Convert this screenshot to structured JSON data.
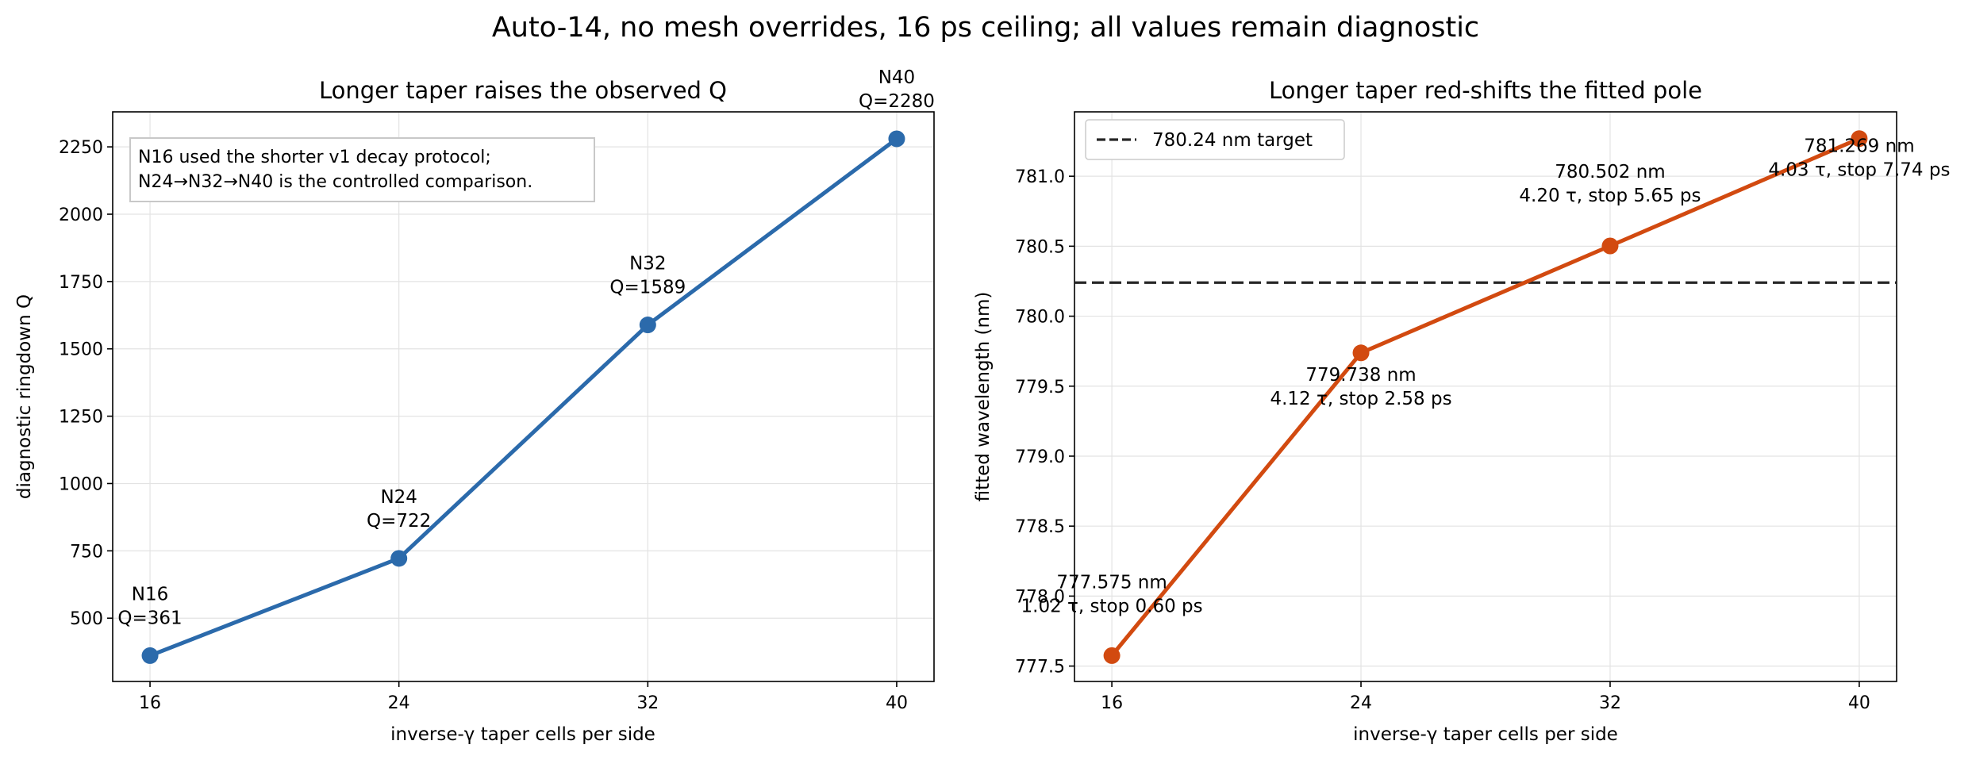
{
  "suptitle": "Auto-14, no mesh overrides, 16 ps ceiling; all values remain diagnostic",
  "chart_data": [
    {
      "type": "line",
      "title": "Longer taper raises the observed Q",
      "xlabel": "inverse-γ taper cells per side",
      "ylabel": "diagnostic ringdown Q",
      "x": [
        16,
        24,
        32,
        40
      ],
      "xticks": [
        "16",
        "24",
        "32",
        "40"
      ],
      "yticks": [
        "500",
        "750",
        "1000",
        "1250",
        "1500",
        "1750",
        "2000",
        "2250"
      ],
      "xlim": [
        14.8,
        41.2
      ],
      "ylim": [
        265,
        2380
      ],
      "grid": true,
      "color": "#2b6aab",
      "series": [
        {
          "values": [
            361,
            722,
            1589,
            2280
          ]
        }
      ],
      "point_labels": [
        [
          "N16",
          "Q=361"
        ],
        [
          "N24",
          "Q=722"
        ],
        [
          "N32",
          "Q=1589"
        ],
        [
          "N40",
          "Q=2280"
        ]
      ],
      "annotation_box": [
        "N16 used the shorter v1 decay protocol;",
        "N24→N32→N40 is the controlled comparison."
      ]
    },
    {
      "type": "line",
      "title": "Longer taper red-shifts the fitted pole",
      "xlabel": "inverse-γ taper cells per side",
      "ylabel": "fitted wavelength (nm)",
      "x": [
        16,
        24,
        32,
        40
      ],
      "xticks": [
        "16",
        "24",
        "32",
        "40"
      ],
      "yticks": [
        "777.5",
        "778.0",
        "778.5",
        "779.0",
        "779.5",
        "780.0",
        "780.5",
        "781.0"
      ],
      "xlim": [
        14.8,
        41.2
      ],
      "ylim": [
        777.39,
        781.46
      ],
      "grid": true,
      "color": "#d24a10",
      "series": [
        {
          "values": [
            777.575,
            779.738,
            780.502,
            781.269
          ]
        }
      ],
      "reference_line": {
        "value": 780.24,
        "label": "780.24 nm target",
        "color": "#262626",
        "style": "dashed"
      },
      "legend_position": "upper left",
      "point_labels": [
        [
          "777.575 nm",
          "1.02 τ, stop 0.60 ps"
        ],
        [
          "779.738 nm",
          "4.12 τ, stop 2.58 ps"
        ],
        [
          "780.502 nm",
          "4.20 τ, stop 5.65 ps"
        ],
        [
          "781.269 nm",
          "4.03 τ, stop 7.74 ps"
        ]
      ]
    }
  ]
}
